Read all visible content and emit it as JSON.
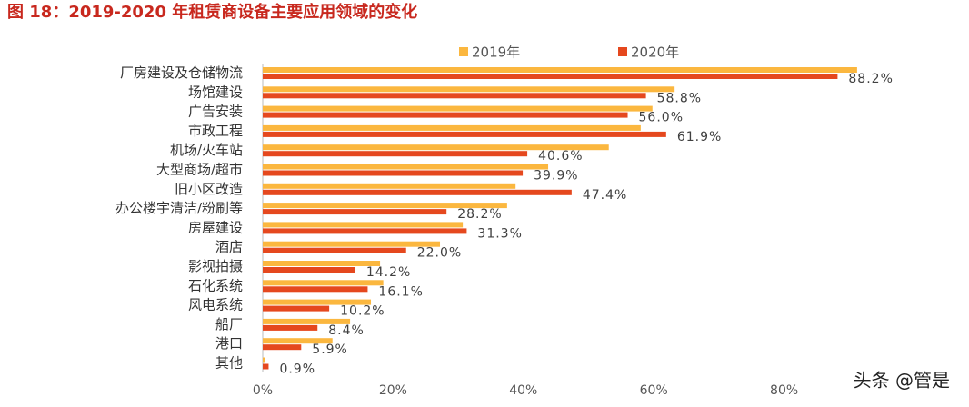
{
  "chart_data": {
    "type": "hbar",
    "title": "图 18：2019-2020 年租赁商设备主要应用领域的变化",
    "watermark": "头条 @管是",
    "categories": [
      "厂房建设及仓储物流",
      "场馆建设",
      "广告安装",
      "市政工程",
      "机场/火车站",
      "大型商场/超市",
      "旧小区改造",
      "办公楼宇清洁/粉刷等",
      "房屋建设",
      "酒店",
      "影视拍摄",
      "石化系统",
      "风电系统",
      "船厂",
      "港口",
      "其他"
    ],
    "series": [
      {
        "name": "2019年",
        "color": "#FBB73F",
        "values": [
          91.2,
          63.2,
          59.8,
          58.0,
          53.1,
          43.8,
          38.8,
          37.5,
          30.7,
          27.2,
          18.0,
          18.5,
          16.6,
          13.4,
          10.7,
          0.3
        ]
      },
      {
        "name": "2020年",
        "color": "#E5481E",
        "values": [
          88.2,
          58.8,
          56.0,
          61.9,
          40.6,
          39.9,
          47.4,
          28.2,
          31.3,
          22.0,
          14.2,
          16.1,
          10.2,
          8.4,
          5.9,
          0.9
        ],
        "value_labels": [
          "88.2%",
          "58.8%",
          "56.0%",
          "61.9%",
          "40.6%",
          "39.9%",
          "47.4%",
          "28.2%",
          "31.3%",
          "22.0%",
          "14.2%",
          "16.1%",
          "10.2%",
          "8.4%",
          "5.9%",
          "0.9%"
        ]
      }
    ],
    "xlim": [
      0,
      100
    ],
    "xticks": [
      {
        "value": 0,
        "label": "0%"
      },
      {
        "value": 20,
        "label": "20%"
      },
      {
        "value": 40,
        "label": "40%"
      },
      {
        "value": 60,
        "label": "60%"
      },
      {
        "value": 80,
        "label": "80%"
      }
    ]
  }
}
